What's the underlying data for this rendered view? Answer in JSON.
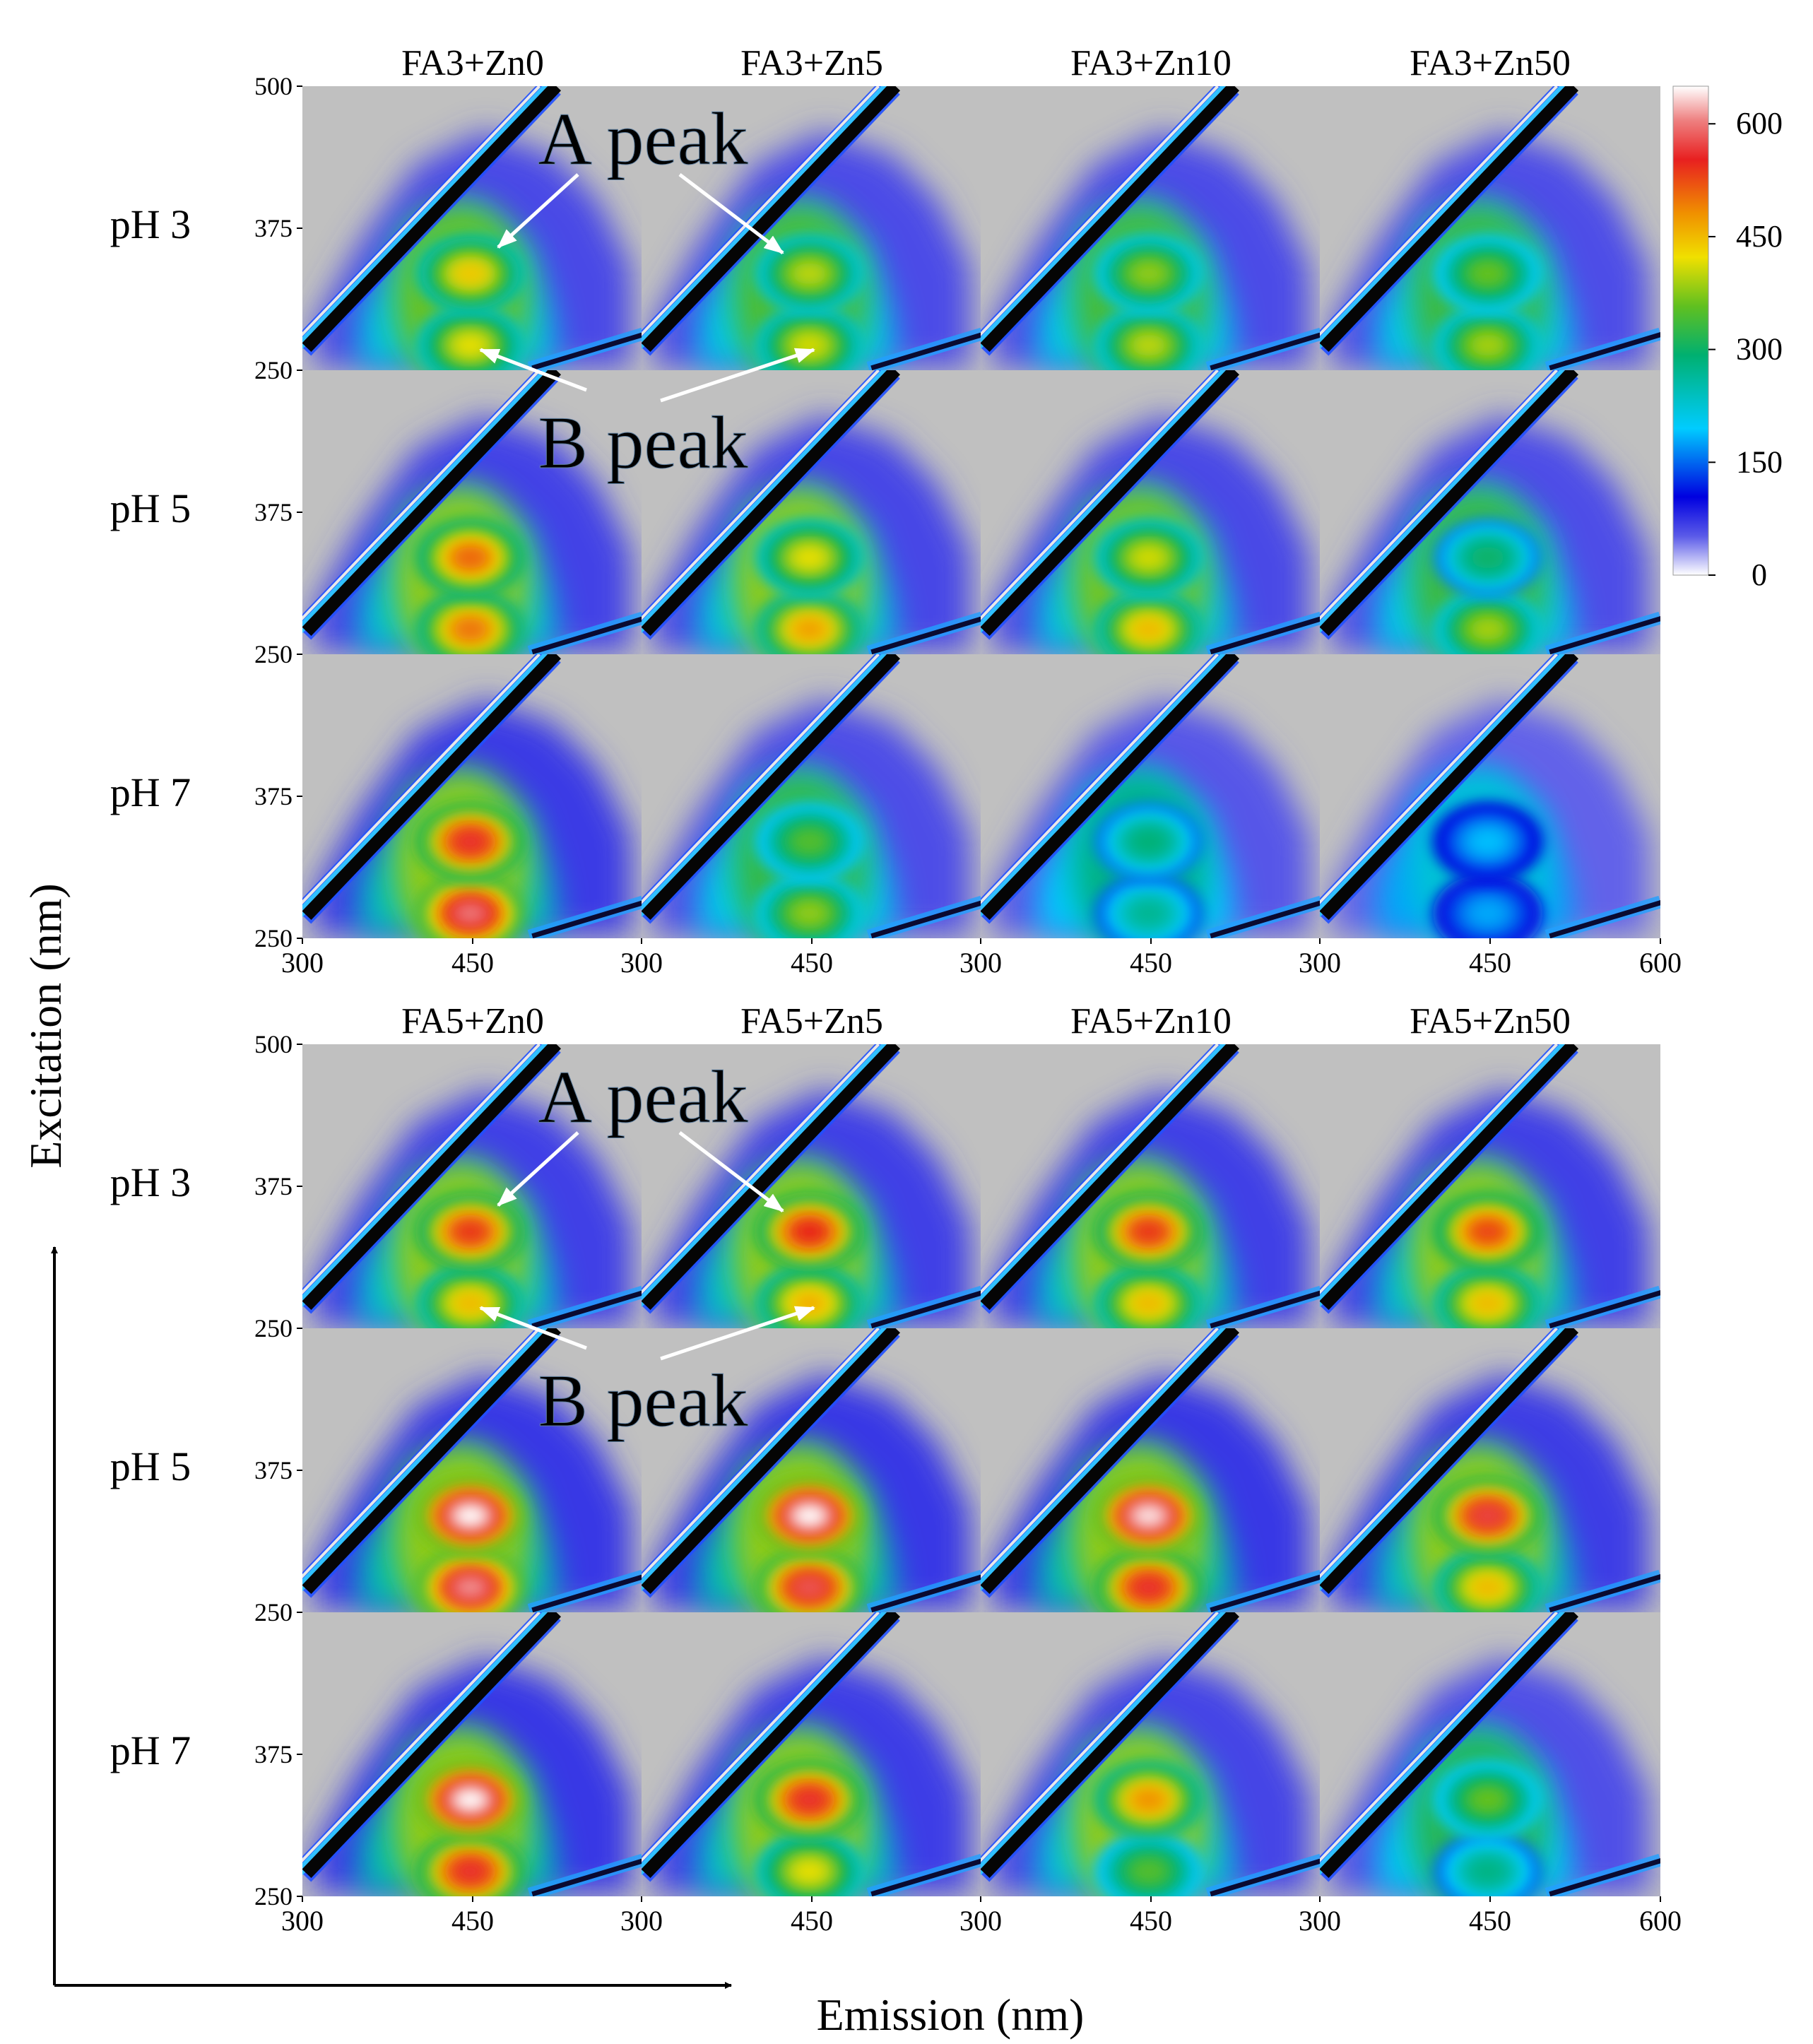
{
  "chart_data": {
    "type": "heatmap",
    "title": "",
    "xlabel": "Emission (nm)",
    "ylabel": "Excitation (nm)",
    "x_range": [
      300,
      600
    ],
    "y_range": [
      250,
      500
    ],
    "x_ticks": [
      "300",
      "450"
    ],
    "x_ticks_last": [
      "300",
      "450",
      "600"
    ],
    "y_ticks": [
      "500",
      "375",
      "250"
    ],
    "colorbar": {
      "range": [
        0,
        650
      ],
      "ticks": [
        "600",
        "450",
        "300",
        "150",
        "0"
      ]
    },
    "annotations": {
      "a_peak": "A peak",
      "b_peak": "B peak"
    },
    "row_labels": [
      "pH 3",
      "pH 5",
      "pH 7"
    ],
    "colors": {
      "background": "#c0c0c0",
      "arrow": "#000000",
      "annotation": "#ffffff"
    },
    "groups": [
      {
        "name": "FA3",
        "titles": [
          "FA3+Zn0",
          "FA3+Zn5",
          "FA3+Zn10",
          "FA3+Zn50"
        ],
        "a_peak": [
          [
            440,
            400,
            380,
            360
          ],
          [
            510,
            420,
            410,
            300
          ],
          [
            560,
            350,
            290,
            190
          ]
        ],
        "b_peak": [
          [
            420,
            410,
            400,
            390
          ],
          [
            500,
            470,
            450,
            390
          ],
          [
            600,
            380,
            270,
            180
          ]
        ]
      },
      {
        "name": "FA5",
        "titles": [
          "FA5+Zn0",
          "FA5+Zn5",
          "FA5+Zn10",
          "FA5+Zn50"
        ],
        "a_peak": [
          [
            540,
            550,
            540,
            530
          ],
          [
            650,
            650,
            640,
            570
          ],
          [
            650,
            560,
            480,
            360
          ]
        ],
        "b_peak": [
          [
            450,
            460,
            450,
            450
          ],
          [
            610,
            580,
            560,
            450
          ],
          [
            560,
            420,
            350,
            280
          ]
        ]
      }
    ]
  }
}
